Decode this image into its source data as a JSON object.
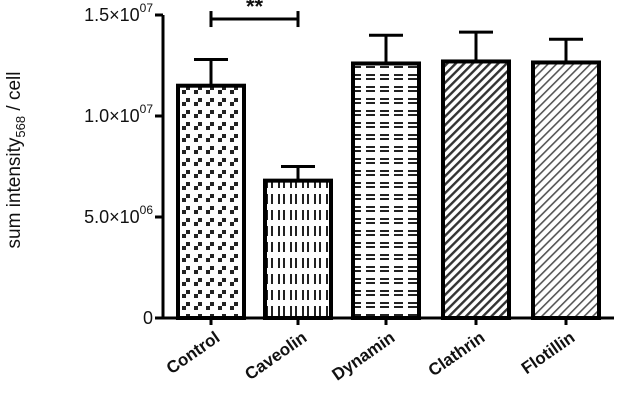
{
  "chart_data": {
    "type": "bar",
    "title": "",
    "xlabel": "",
    "ylabel": "sum intensity",
    "ylabel_subscript": "568",
    "ylabel_suffix": " / cell",
    "categories": [
      "Control",
      "Caveolin",
      "Dynamin",
      "Clathrin",
      "Flotillin"
    ],
    "values": [
      11500000,
      6800000,
      12600000,
      12700000,
      12650000
    ],
    "errors": [
      1300000,
      700000,
      1400000,
      1450000,
      1150000
    ],
    "ylim": [
      0,
      15000000
    ],
    "yticks": [
      {
        "value": 0,
        "mantissa": "0",
        "exponent": ""
      },
      {
        "value": 5000000,
        "mantissa": "5.0×10",
        "exponent": "06"
      },
      {
        "value": 10000000,
        "mantissa": "1.0×10",
        "exponent": "07"
      },
      {
        "value": 15000000,
        "mantissa": "1.5×10",
        "exponent": "07"
      }
    ],
    "patterns": [
      "checker",
      "vertical-dashes",
      "horizontal-dashes",
      "diagonal-hatch",
      "diagonal-hatch-light"
    ],
    "significance": {
      "from": "Control",
      "to": "Caveolin",
      "label": "**",
      "value": 14800000
    },
    "bar_color": "#000000",
    "background": "#ffffff"
  }
}
